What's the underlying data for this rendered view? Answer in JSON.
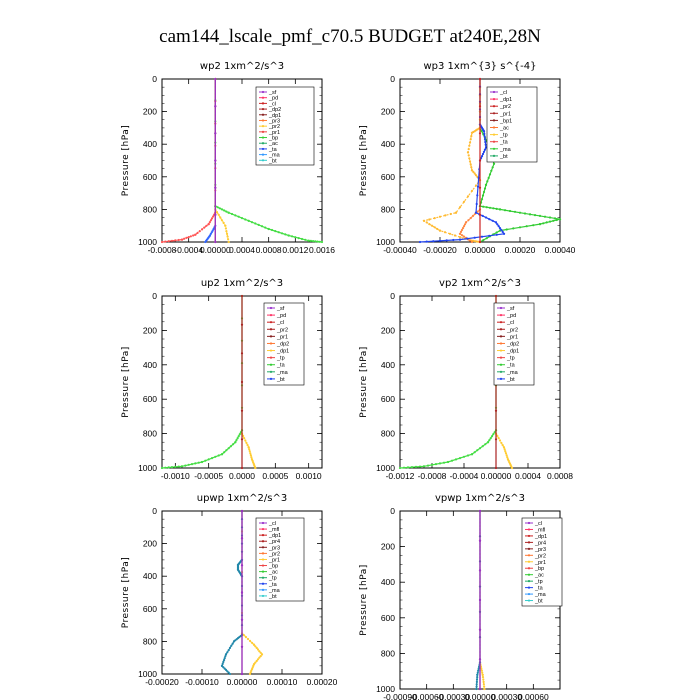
{
  "figure_title": "cam144_lscale_pmf_c70.5  BUDGET at240E,28N",
  "chart_data": [
    {
      "type": "line",
      "title": "wp2   1xm^2/s^3",
      "ylabel": "Pressure [hPa]",
      "xlim": [
        -0.0008,
        0.0016
      ],
      "ylim": [
        1000,
        0
      ],
      "xticks": [
        -0.0008,
        -0.0004,
        0.0,
        0.0004,
        0.0008,
        0.0012,
        0.0016
      ],
      "xtick_labels": [
        "-0.0008",
        "-0.0004",
        "0.00000",
        "0.0004",
        "0.0008",
        "0.0012",
        "0.0016"
      ],
      "yticks": [
        0,
        200,
        400,
        600,
        800,
        1000
      ],
      "legend": [
        "_sf",
        "_pd",
        "_cl",
        "_dp2",
        "_dp1",
        "_pr3",
        "_pr2",
        "_pr1",
        "_bp",
        "_ac",
        "_ta",
        "_ma",
        "_bt"
      ],
      "series": [
        {
          "name": "_bp",
          "color": "#44dd44",
          "points": [
            [
              0,
              0
            ],
            [
              0,
              780
            ],
            [
              0.0002,
              820
            ],
            [
              0.0005,
              870
            ],
            [
              0.0008,
              920
            ],
            [
              0.0011,
              960
            ],
            [
              0.0014,
              992
            ],
            [
              0.0016,
              1000
            ]
          ]
        },
        {
          "name": "_pr1",
          "color": "#ff5555",
          "points": [
            [
              0,
              0
            ],
            [
              0,
              820
            ],
            [
              -0.0001,
              890
            ],
            [
              -0.0003,
              955
            ],
            [
              -0.0005,
              985
            ],
            [
              -0.0008,
              1000
            ]
          ]
        },
        {
          "name": "_pr2",
          "color": "#ffcc33",
          "points": [
            [
              0,
              800
            ],
            [
              0.00015,
              900
            ],
            [
              0.0002,
              1000
            ]
          ]
        },
        {
          "name": "_ma",
          "color": "#3366ff",
          "points": [
            [
              0,
              900
            ],
            [
              -8e-05,
              960
            ],
            [
              -0.00015,
              1000
            ]
          ]
        },
        {
          "name": "_dp1",
          "color": "#aa2222",
          "points": [
            [
              0,
              0
            ],
            [
              0,
              1000
            ]
          ]
        },
        {
          "name": "_sf",
          "color": "#9933cc",
          "points": [
            [
              0,
              0
            ],
            [
              0,
              1000
            ]
          ]
        }
      ]
    },
    {
      "type": "line",
      "title": "wp3   1xm^{3} s^{-4}",
      "ylabel": "Pressure [hPa]",
      "xlim": [
        -0.0004,
        0.0004
      ],
      "ylim": [
        1000,
        0
      ],
      "xticks": [
        -0.0004,
        -0.0002,
        0.0,
        0.0002,
        0.0004
      ],
      "xtick_labels": [
        "-0.00040",
        "-0.00020",
        "0.00000",
        "0.00020",
        "0.00040"
      ],
      "yticks": [
        0,
        200,
        400,
        600,
        800,
        1000
      ],
      "legend": [
        "_cl",
        "_dp1",
        "_pr2",
        "_pr1",
        "_bp1",
        "_ac",
        "_tp",
        "_ta",
        "_ma",
        "_bt"
      ],
      "series": [
        {
          "name": "_ac",
          "color": "#33cc33",
          "points": [
            [
              0,
              0
            ],
            [
              0,
              300
            ],
            [
              5e-05,
              420
            ],
            [
              7e-05,
              520
            ],
            [
              3e-05,
              650
            ],
            [
              0,
              780
            ],
            [
              0.0001,
              800
            ],
            [
              0.00025,
              830
            ],
            [
              0.0004,
              860
            ],
            [
              0.0003,
              890
            ],
            [
              0.0001,
              930
            ],
            [
              0,
              1000
            ]
          ]
        },
        {
          "name": "_pr1",
          "color": "#ffbb33",
          "points": [
            [
              0,
              0
            ],
            [
              0,
              300
            ],
            [
              -4e-05,
              330
            ],
            [
              -6e-05,
              450
            ],
            [
              -4e-05,
              560
            ],
            [
              0,
              620
            ],
            [
              -0.00012,
              820
            ],
            [
              -0.00028,
              870
            ],
            [
              -0.0002,
              930
            ],
            [
              -5e-05,
              990
            ],
            [
              0,
              1000
            ]
          ]
        },
        {
          "name": "_pr2",
          "color": "#ff8844",
          "points": [
            [
              0,
              800
            ],
            [
              -7e-05,
              880
            ],
            [
              -0.0001,
              950
            ],
            [
              -4e-05,
              1000
            ]
          ]
        },
        {
          "name": "_tp",
          "color": "#2244ee",
          "points": [
            [
              0,
              0
            ],
            [
              0,
              280
            ],
            [
              2e-05,
              320
            ],
            [
              3e-05,
              420
            ],
            [
              0,
              500
            ],
            [
              -2e-05,
              820
            ],
            [
              8e-05,
              880
            ],
            [
              0.00012,
              950
            ],
            [
              -0.0001,
              985
            ],
            [
              -0.0003,
              1000
            ]
          ]
        },
        {
          "name": "_cl",
          "color": "#cc2222",
          "points": [
            [
              0,
              0
            ],
            [
              0,
              1000
            ]
          ]
        }
      ]
    },
    {
      "type": "line",
      "title": "up2   1xm^2/s^3",
      "ylabel": "Pressure [hPa]",
      "xlim": [
        -0.0012,
        0.0012
      ],
      "ylim": [
        1000,
        0
      ],
      "xticks": [
        -0.001,
        -0.0005,
        0.0,
        0.0005,
        0.001
      ],
      "xtick_labels": [
        "-0.0010",
        "-0.0005",
        "0.0000",
        "0.0005",
        "0.0010"
      ],
      "yticks": [
        0,
        200,
        400,
        600,
        800,
        1000
      ],
      "legend": [
        "_sf",
        "_pd",
        "_cl",
        "_pr2",
        "_pr1",
        "_dp2",
        "_dp1",
        "_tp",
        "_ta",
        "_ma",
        "_bt"
      ],
      "series": [
        {
          "name": "_dp1",
          "color": "#44dd44",
          "points": [
            [
              0,
              0
            ],
            [
              0,
              780
            ],
            [
              -0.0001,
              850
            ],
            [
              -0.0003,
              920
            ],
            [
              -0.0006,
              965
            ],
            [
              -0.0009,
              990
            ],
            [
              -0.0012,
              1000
            ]
          ]
        },
        {
          "name": "_pr1",
          "color": "#ffcc33",
          "points": [
            [
              0,
              800
            ],
            [
              0.0001,
              880
            ],
            [
              0.00015,
              950
            ],
            [
              0.0002,
              1000
            ]
          ]
        },
        {
          "name": "_cl",
          "color": "#aa2222",
          "points": [
            [
              0,
              0
            ],
            [
              0,
              1000
            ]
          ]
        }
      ]
    },
    {
      "type": "line",
      "title": "vp2   1xm^2/s^3",
      "ylabel": "Pressure [hPa]",
      "xlim": [
        -0.0012,
        0.0008
      ],
      "ylim": [
        1000,
        0
      ],
      "xticks": [
        -0.0012,
        -0.0008,
        -0.0004,
        0.0,
        0.0004,
        0.0008
      ],
      "xtick_labels": [
        "-0.0012",
        "-0.0008",
        "-0.0004",
        "0.00000",
        "0.0004",
        "0.0008"
      ],
      "yticks": [
        0,
        200,
        400,
        600,
        800,
        1000
      ],
      "legend": [
        "_sf",
        "_pd",
        "_cl",
        "_pr2",
        "_pr1",
        "_dp2",
        "_dp1",
        "_tp",
        "_ta",
        "_ma",
        "_bt"
      ],
      "series": [
        {
          "name": "_dp1",
          "color": "#44dd44",
          "points": [
            [
              0,
              0
            ],
            [
              0,
              780
            ],
            [
              -0.0001,
              850
            ],
            [
              -0.0003,
              920
            ],
            [
              -0.0006,
              965
            ],
            [
              -0.0009,
              990
            ],
            [
              -0.0012,
              1000
            ]
          ]
        },
        {
          "name": "_pr1",
          "color": "#ffcc33",
          "points": [
            [
              0,
              800
            ],
            [
              0.0001,
              880
            ],
            [
              0.00015,
              950
            ],
            [
              0.0002,
              1000
            ]
          ]
        },
        {
          "name": "_cl",
          "color": "#aa2222",
          "points": [
            [
              0,
              0
            ],
            [
              0,
              1000
            ]
          ]
        }
      ]
    },
    {
      "type": "line",
      "title": "upwp   1xm^2/s^3",
      "ylabel": "Pressure [hPa]",
      "xlim": [
        -0.0002,
        0.0002
      ],
      "ylim": [
        1000,
        0
      ],
      "xticks": [
        -0.0002,
        -0.0001,
        0.0,
        0.0001,
        0.0002
      ],
      "xtick_labels": [
        "-0.00020",
        "-0.00010",
        "0.00000",
        "0.00010",
        "0.00020"
      ],
      "yticks": [
        0,
        200,
        400,
        600,
        800,
        1000
      ],
      "legend": [
        "_cl",
        "_mfl",
        "_dp1",
        "_pr4",
        "_pr3",
        "_pr2",
        "_pr1",
        "_bp",
        "_ac",
        "_tp",
        "_ta",
        "_ma",
        "_bt"
      ],
      "series": [
        {
          "name": "_pr1",
          "color": "#ffcc33",
          "points": [
            [
              0,
              0
            ],
            [
              0,
              750
            ],
            [
              3e-05,
              820
            ],
            [
              5e-05,
              880
            ],
            [
              3e-05,
              940
            ],
            [
              2e-05,
              1000
            ]
          ]
        },
        {
          "name": "_tp",
          "color": "#2288aa",
          "points": [
            [
              0,
              0
            ],
            [
              0,
              300
            ],
            [
              -1e-05,
              330
            ],
            [
              -1e-05,
              360
            ],
            [
              0,
              400
            ],
            [
              0,
              760
            ],
            [
              -2e-05,
              800
            ],
            [
              -4e-05,
              880
            ],
            [
              -5e-05,
              950
            ],
            [
              -3e-05,
              1000
            ]
          ]
        },
        {
          "name": "_dp1",
          "color": "#aa2222",
          "points": [
            [
              0,
              0
            ],
            [
              0,
              1000
            ]
          ]
        },
        {
          "name": "_cl",
          "color": "#9933cc",
          "points": [
            [
              0,
              0
            ],
            [
              0,
              1000
            ]
          ]
        }
      ]
    },
    {
      "type": "line",
      "title": "vpwp   1xm^2/s^3",
      "ylabel": "Pressure [hPa]",
      "xlim": [
        -0.0009,
        0.0009
      ],
      "ylim": [
        1000,
        0
      ],
      "xticks": [
        -0.0009,
        -0.0006,
        -0.0003,
        0.0,
        0.0003,
        0.0006
      ],
      "xtick_labels": [
        "-0.00090",
        "-0.00060",
        "-0.00030",
        "0.00000",
        "0.00030",
        "0.00060"
      ],
      "yticks": [
        0,
        200,
        400,
        600,
        800,
        1000
      ],
      "legend": [
        "_cl",
        "_mfl",
        "_dp1",
        "_pr4",
        "_pr3",
        "_pr2",
        "_pr1",
        "_bp",
        "_ac",
        "_tp",
        "_ta",
        "_ma",
        "_bt"
      ],
      "series": [
        {
          "name": "_pr1",
          "color": "#ffcc33",
          "points": [
            [
              0,
              0
            ],
            [
              0,
              850
            ],
            [
              3e-05,
              920
            ],
            [
              5e-05,
              1000
            ]
          ]
        },
        {
          "name": "_tp",
          "color": "#2288aa",
          "points": [
            [
              0,
              0
            ],
            [
              0,
              850
            ],
            [
              -3e-05,
              920
            ],
            [
              -4e-05,
              1000
            ]
          ]
        },
        {
          "name": "_dp1",
          "color": "#aa2222",
          "points": [
            [
              0,
              0
            ],
            [
              0,
              1000
            ]
          ]
        },
        {
          "name": "_cl",
          "color": "#9933cc",
          "points": [
            [
              0,
              0
            ],
            [
              0,
              1000
            ]
          ]
        }
      ]
    }
  ]
}
